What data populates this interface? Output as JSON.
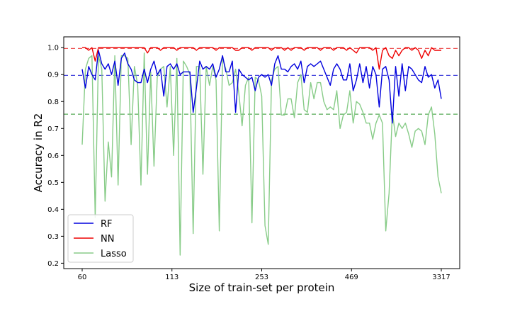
{
  "chart_data": {
    "type": "line",
    "xlabel": "Size of train-set per protein",
    "ylabel": "Accuracy in R2",
    "x_tick_labels": [
      "60",
      "113",
      "253",
      "469",
      "3317"
    ],
    "ylim": [
      0.18,
      1.04
    ],
    "y_ticks": [
      0.2,
      0.3,
      0.4,
      0.5,
      0.6,
      0.7,
      0.8,
      0.9,
      1.0
    ],
    "y_tick_labels": [
      "0.2",
      "0.3",
      "0.4",
      "0.5",
      "0.6",
      "0.7",
      "0.8",
      "0.9",
      "1.0"
    ],
    "legend_position": "bottom-left",
    "grid": false,
    "series": [
      {
        "name": "RF",
        "color": "#0000dd",
        "values": [
          0.92,
          0.85,
          0.93,
          0.9,
          0.88,
          0.99,
          0.94,
          0.92,
          0.94,
          0.9,
          0.95,
          0.86,
          0.96,
          0.98,
          0.94,
          0.92,
          0.88,
          0.87,
          0.87,
          0.92,
          0.87,
          0.92,
          0.95,
          0.9,
          0.92,
          0.82,
          0.93,
          0.94,
          0.92,
          0.94,
          0.9,
          0.91,
          0.91,
          0.91,
          0.76,
          0.85,
          0.95,
          0.92,
          0.93,
          0.92,
          0.94,
          0.89,
          0.92,
          0.97,
          0.91,
          0.91,
          0.95,
          0.76,
          0.92,
          0.9,
          0.89,
          0.88,
          0.89,
          0.84,
          0.89,
          0.9,
          0.89,
          0.9,
          0.86,
          0.94,
          0.97,
          0.92,
          0.92,
          0.91,
          0.93,
          0.94,
          0.92,
          0.95,
          0.87,
          0.93,
          0.94,
          0.93,
          0.94,
          0.95,
          0.92,
          0.89,
          0.86,
          0.92,
          0.94,
          0.92,
          0.88,
          0.88,
          0.94,
          0.84,
          0.88,
          0.94,
          0.87,
          0.93,
          0.85,
          0.93,
          0.9,
          0.78,
          0.92,
          0.93,
          0.88,
          0.72,
          0.93,
          0.82,
          0.94,
          0.84,
          0.93,
          0.92,
          0.9,
          0.88,
          0.87,
          0.93,
          0.89,
          0.9,
          0.85,
          0.88,
          0.81
        ],
        "reference_line": 0.897
      },
      {
        "name": "NN",
        "color": "#ee0000",
        "values": [
          1.0,
          1.0,
          0.99,
          1.0,
          0.95,
          1.0,
          1.0,
          1.0,
          1.0,
          1.0,
          1.0,
          1.0,
          1.0,
          1.0,
          1.0,
          1.0,
          1.0,
          1.0,
          1.0,
          1.0,
          0.98,
          1.0,
          1.0,
          1.0,
          0.99,
          1.0,
          1.0,
          1.0,
          1.0,
          0.99,
          1.0,
          1.0,
          1.0,
          1.0,
          1.0,
          0.99,
          1.0,
          1.0,
          1.0,
          1.0,
          1.0,
          0.99,
          1.0,
          1.0,
          1.0,
          1.0,
          1.0,
          0.99,
          0.99,
          1.0,
          1.0,
          1.0,
          0.99,
          1.0,
          1.0,
          1.0,
          1.0,
          1.0,
          0.99,
          1.0,
          1.0,
          1.0,
          0.99,
          1.0,
          0.99,
          1.0,
          1.0,
          1.0,
          0.99,
          1.0,
          1.0,
          1.0,
          1.0,
          0.99,
          1.0,
          1.0,
          1.0,
          0.99,
          1.0,
          1.0,
          1.0,
          0.99,
          1.0,
          0.99,
          0.98,
          1.0,
          1.0,
          1.0,
          1.0,
          0.99,
          1.0,
          0.92,
          0.99,
          1.0,
          0.97,
          0.96,
          0.99,
          0.97,
          0.99,
          1.0,
          1.0,
          0.99,
          1.0,
          0.99,
          0.96,
          0.99,
          0.97,
          1.0,
          0.99,
          0.99,
          0.99
        ],
        "reference_line": 0.997
      },
      {
        "name": "Lasso",
        "color": "#88cc88",
        "values": [
          0.64,
          0.92,
          0.96,
          0.97,
          0.37,
          0.97,
          0.92,
          0.43,
          0.65,
          0.52,
          0.97,
          0.49,
          0.97,
          0.97,
          0.96,
          0.64,
          0.93,
          0.86,
          0.49,
          0.98,
          0.53,
          0.91,
          0.56,
          0.89,
          0.92,
          0.93,
          0.78,
          0.93,
          0.6,
          0.96,
          0.23,
          0.95,
          0.93,
          0.9,
          0.31,
          0.93,
          0.93,
          0.53,
          0.93,
          0.86,
          0.93,
          0.88,
          0.32,
          0.96,
          0.92,
          0.86,
          0.87,
          0.92,
          0.83,
          0.71,
          0.86,
          0.89,
          0.35,
          0.89,
          0.88,
          0.82,
          0.34,
          0.27,
          0.88,
          0.92,
          0.93,
          0.75,
          0.75,
          0.81,
          0.81,
          0.74,
          0.87,
          0.9,
          0.77,
          0.76,
          0.87,
          0.81,
          0.87,
          0.87,
          0.8,
          0.77,
          0.78,
          0.77,
          0.84,
          0.7,
          0.75,
          0.76,
          0.84,
          0.72,
          0.8,
          0.79,
          0.76,
          0.72,
          0.72,
          0.66,
          0.72,
          0.75,
          0.72,
          0.32,
          0.46,
          0.76,
          0.67,
          0.72,
          0.7,
          0.72,
          0.68,
          0.63,
          0.69,
          0.7,
          0.69,
          0.64,
          0.75,
          0.78,
          0.68,
          0.52,
          0.46
        ],
        "reference_line": 0.753
      }
    ]
  }
}
